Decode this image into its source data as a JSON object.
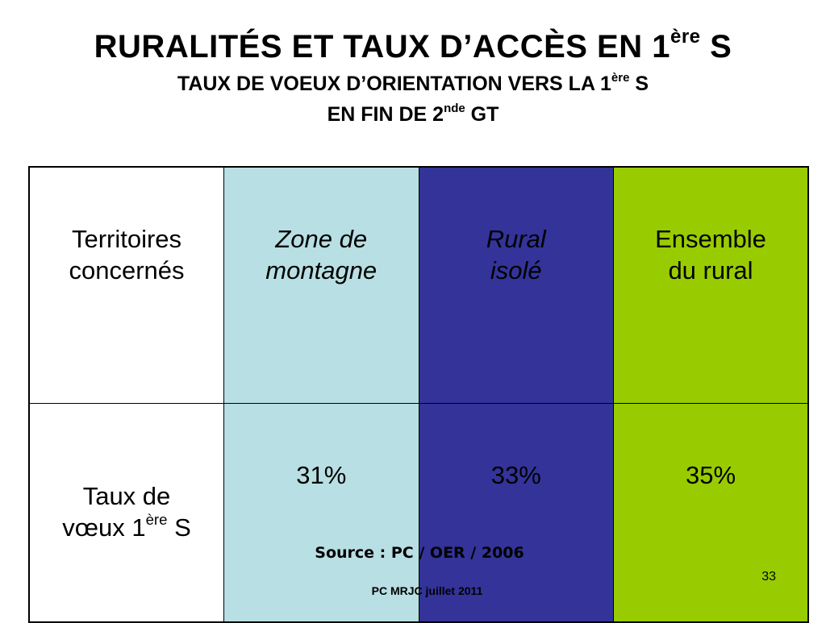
{
  "title": {
    "line1_main": "RURALITÉS ET TAUX D’ACCÈS EN 1",
    "line1_sup": "ère",
    "line1_end": " S",
    "line2_main": "TAUX DE VOEUX D’ORIENTATION VERS LA 1",
    "line2_sup": "ère",
    "line2_end": " S",
    "line3_main": "EN FIN DE 2",
    "line3_sup": "nde",
    "line3_end": " GT"
  },
  "table": {
    "colors": [
      "#ffffff",
      "#b8dfe3",
      "#333399",
      "#99cc00"
    ],
    "header": {
      "c0_l1": "Territoires",
      "c0_l2": "concernés",
      "c1_l1": "Zone de",
      "c1_l2": "montagne",
      "c2_l1": "Rural",
      "c2_l2": "isolé",
      "c3_l1": "Ensemble",
      "c3_l2": "du rural"
    },
    "row": {
      "label_l1": "Taux de",
      "label_l2_main": "vœux 1",
      "label_l2_sup": "ère",
      "label_l2_end": " S",
      "values": [
        "31%",
        "33%",
        "35%"
      ]
    }
  },
  "source": "Source : PC / OER / 2006",
  "footer": "PC MRJC juillet 2011",
  "page_number": "33"
}
